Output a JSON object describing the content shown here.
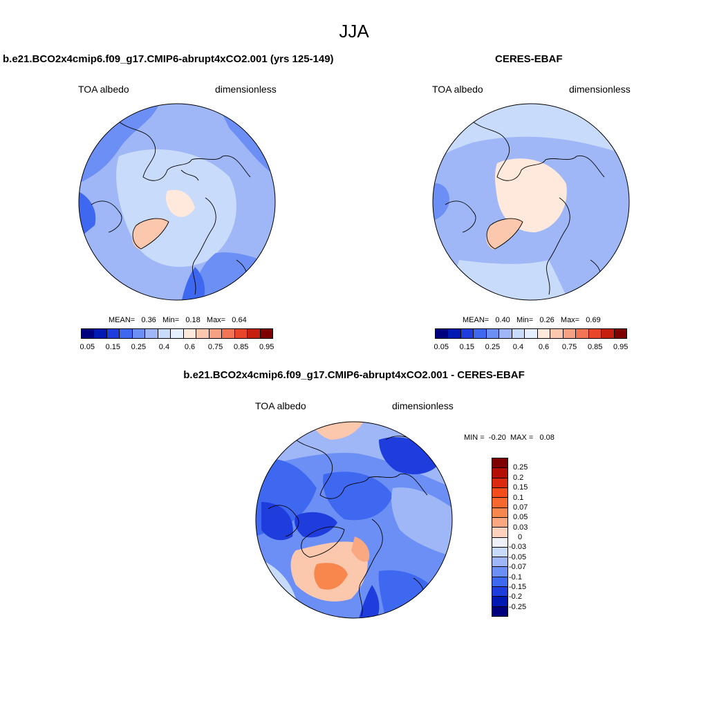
{
  "season": "JJA",
  "panels": {
    "model": {
      "title": "b.e21.BCO2x4cmip6.f09_g17.CMIP6-abrupt4xCO2.001 (yrs 125-149)",
      "left_label": "TOA albedo",
      "right_label": "dimensionless",
      "mean_label": "MEAN=",
      "mean_value": "0.36",
      "min_label": "Min=",
      "min_value": "0.18",
      "max_label": "Max=",
      "max_value": "0.64"
    },
    "obs": {
      "title": "CERES-EBAF",
      "left_label": "TOA albedo",
      "right_label": "dimensionless",
      "mean_label": "MEAN=",
      "mean_value": "0.40",
      "min_label": "Min=",
      "min_value": "0.26",
      "max_label": "Max=",
      "max_value": "0.69"
    },
    "diff": {
      "title": "b.e21.BCO2x4cmip6.f09_g17.CMIP6-abrupt4xCO2.001 - CERES-EBAF",
      "left_label": "TOA albedo",
      "right_label": "dimensionless",
      "min_label": "MIN =",
      "min_value": "-0.20",
      "max_label": "MAX =",
      "max_value": "0.08"
    }
  },
  "colorbars": {
    "abs": {
      "colors": [
        "#00007f",
        "#0019b2",
        "#1e3ddc",
        "#3f68f0",
        "#6c8ff5",
        "#9fb7f7",
        "#c9dbfa",
        "#e6efff",
        "#ffe9dc",
        "#fbc7ad",
        "#f6a184",
        "#f27656",
        "#e9452b",
        "#c61f10",
        "#7f0000"
      ],
      "tick_labels": [
        "0.05",
        "0.15",
        "0.25",
        "0.4",
        "0.6",
        "0.75",
        "0.85",
        "0.95"
      ]
    },
    "diff": {
      "colors": [
        "#7f0000",
        "#b50f05",
        "#dc2a10",
        "#f44c1a",
        "#f7682f",
        "#f8874e",
        "#f9a882",
        "#fcd2bf",
        "#eef2f8",
        "#c9dbfa",
        "#9fb7f7",
        "#6c8ff5",
        "#3f68f0",
        "#1e3ddc",
        "#0019b2",
        "#00007f"
      ],
      "tick_labels": [
        "0.25",
        "0.2",
        "0.15",
        "0.1",
        "0.07",
        "0.05",
        "0.03",
        "0",
        "-0.03",
        "-0.05",
        "-0.07",
        "-0.1",
        "-0.15",
        "-0.2",
        "-0.25"
      ]
    }
  }
}
